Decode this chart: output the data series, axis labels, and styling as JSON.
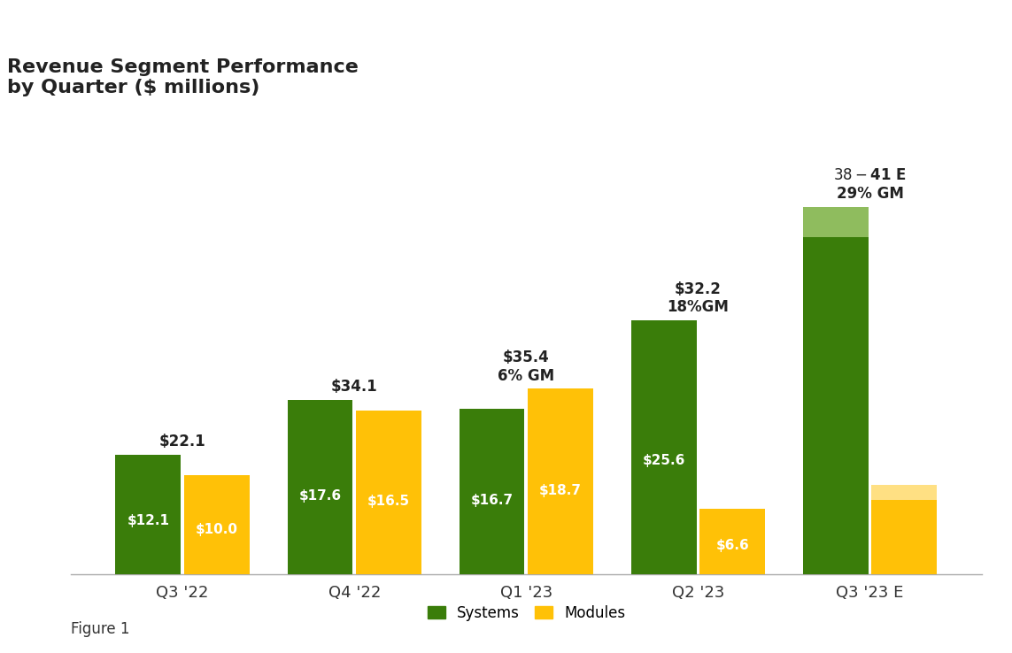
{
  "title": "Revenue Segment Performance\nby Quarter ($ millions)",
  "quarters": [
    "Q3 '22",
    "Q4 '22",
    "Q1 '23",
    "Q2 '23",
    "Q3 '23 E"
  ],
  "systems_values": [
    12.1,
    17.6,
    16.7,
    25.6,
    34.0
  ],
  "systems_range_extra": [
    0,
    0,
    0,
    0,
    3.0
  ],
  "modules_values": [
    10.0,
    16.5,
    18.7,
    6.6,
    7.5
  ],
  "modules_range_extra": [
    0,
    0,
    0,
    0,
    1.5
  ],
  "systems_color": "#3a7d0a",
  "systems_range_color": "#8fbc5e",
  "modules_color": "#ffc107",
  "modules_range_color": "#ffe083",
  "bar_width": 0.38,
  "bar_labels_systems": [
    "$12.1",
    "$17.6",
    "$16.7",
    "$25.6",
    ""
  ],
  "bar_labels_modules": [
    "$10.0",
    "$16.5",
    "$18.7",
    "$6.6",
    ""
  ],
  "totals_labels": [
    "$22.1",
    "$34.1",
    "$35.4",
    "$32.2",
    "$38 - $41 E\n29% GM"
  ],
  "gm_labels": [
    "",
    "",
    "6% GM",
    "18%GM",
    ""
  ],
  "figure_label": "Figure 1",
  "legend_systems": "Systems",
  "legend_modules": "Modules",
  "background_color": "#ffffff",
  "ylim": [
    0,
    46
  ],
  "title_fontsize": 16,
  "annotation_fontsize": 12,
  "bar_label_fontsize": 11,
  "tick_fontsize": 13
}
